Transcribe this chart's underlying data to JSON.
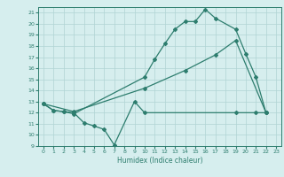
{
  "line1_x": [
    0,
    1,
    2,
    3,
    10,
    11,
    12,
    13,
    14,
    15,
    16,
    17,
    19,
    20,
    21,
    22
  ],
  "line1_y": [
    12.8,
    12.2,
    12.1,
    11.9,
    15.2,
    16.8,
    18.2,
    19.5,
    20.2,
    20.2,
    21.3,
    20.5,
    19.5,
    17.3,
    15.2,
    12.0
  ],
  "line2_x": [
    0,
    3,
    10,
    14,
    17,
    19,
    22
  ],
  "line2_y": [
    12.8,
    12.1,
    14.2,
    15.8,
    17.2,
    18.5,
    12.0
  ],
  "line3_x": [
    0,
    1,
    2,
    3,
    4,
    5,
    6,
    7,
    9,
    10,
    19,
    21,
    22
  ],
  "line3_y": [
    12.8,
    12.2,
    12.1,
    12.0,
    11.1,
    10.8,
    10.5,
    9.1,
    13.0,
    12.0,
    12.0,
    12.0,
    12.0
  ],
  "line_color": "#2d7d6e",
  "bg_color": "#d6eeee",
  "grid_color": "#b0d4d4",
  "xlabel": "Humidex (Indice chaleur)",
  "xlim": [
    -0.5,
    23.5
  ],
  "ylim": [
    9,
    21.5
  ],
  "yticks": [
    9,
    10,
    11,
    12,
    13,
    14,
    15,
    16,
    17,
    18,
    19,
    20,
    21
  ],
  "xticks": [
    0,
    1,
    2,
    3,
    4,
    5,
    6,
    7,
    8,
    9,
    10,
    11,
    12,
    13,
    14,
    15,
    16,
    17,
    18,
    19,
    20,
    21,
    22,
    23
  ],
  "marker": "D",
  "markersize": 2.0,
  "linewidth": 0.9
}
